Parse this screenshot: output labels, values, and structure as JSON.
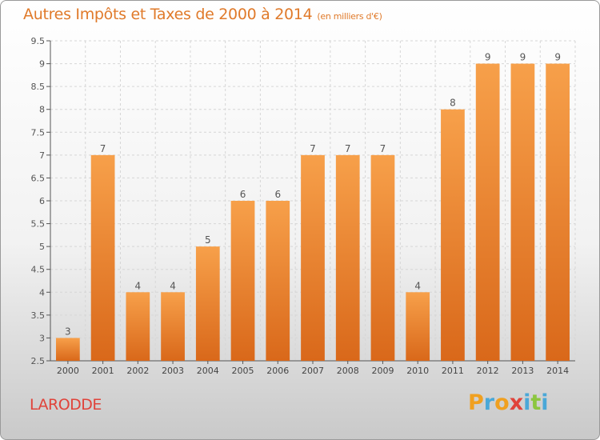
{
  "header": {
    "title": "Autres Impôts et Taxes de 2000 à 2014",
    "unit": "(en milliers d'€)"
  },
  "footer": {
    "commune": "LARODDE",
    "brand_letters": [
      "P",
      "r",
      "o",
      "x",
      "i",
      "t",
      "i"
    ],
    "brand_colors": [
      "#f0a020",
      "#4aa8d8",
      "#f0a020",
      "#e0433a",
      "#4aa8d8",
      "#8cc63f",
      "#4aa8d8"
    ]
  },
  "chart_data": {
    "type": "bar",
    "categories": [
      "2000",
      "2001",
      "2002",
      "2003",
      "2004",
      "2005",
      "2006",
      "2007",
      "2008",
      "2009",
      "2010",
      "2011",
      "2012",
      "2013",
      "2014"
    ],
    "values": [
      3,
      7,
      4,
      4,
      5,
      6,
      6,
      7,
      7,
      7,
      4,
      8,
      9,
      9,
      9
    ],
    "data_labels": [
      "3",
      "7",
      "4",
      "4",
      "5",
      "6",
      "6",
      "7",
      "7",
      "7",
      "4",
      "8",
      "9",
      "9",
      "9"
    ],
    "yticks": [
      "2.5",
      "3",
      "3.5",
      "4",
      "4.5",
      "5",
      "5.5",
      "6",
      "6.5",
      "7",
      "7.5",
      "8",
      "8.5",
      "9",
      "9.5"
    ],
    "ylim": [
      2.5,
      9.5
    ],
    "grid": true,
    "bar_color_light": "#f7a04a",
    "bar_color_dark": "#d9681a"
  }
}
